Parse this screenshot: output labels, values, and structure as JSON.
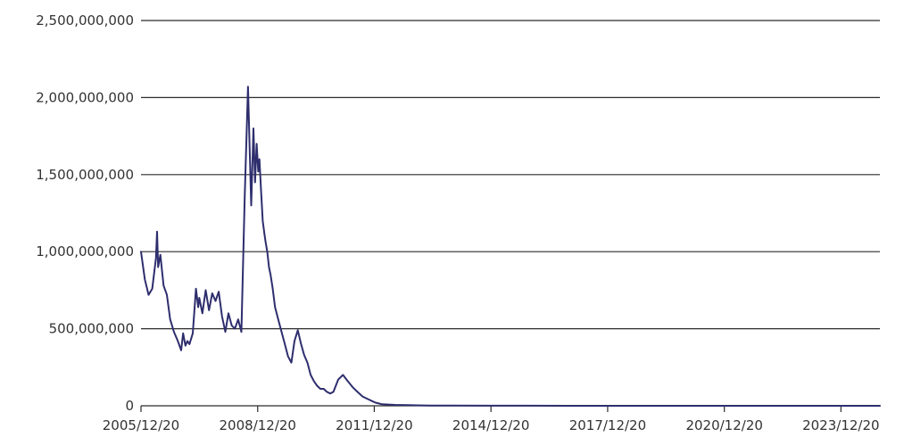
{
  "chart_data": {
    "type": "line",
    "title": "",
    "xlabel": "",
    "ylabel": "",
    "ylim": [
      0,
      2500000000
    ],
    "yticks": [
      0,
      500000000,
      1000000000,
      1500000000,
      2000000000,
      2500000000
    ],
    "ytick_labels": [
      "0",
      "500,000,000",
      "1,000,000,000",
      "1,500,000,000",
      "2,000,000,000",
      "2,500,000,000"
    ],
    "xlim": [
      "2005-12-20",
      "2024-12-20"
    ],
    "xticks": [
      "2005-12-20",
      "2008-12-20",
      "2011-12-20",
      "2014-12-20",
      "2017-12-20",
      "2020-12-20",
      "2023-12-20"
    ],
    "xtick_labels": [
      "2005/12/20",
      "2008/12/20",
      "2011/12/20",
      "2014/12/20",
      "2017/12/20",
      "2020/12/20",
      "2023/12/20"
    ],
    "grid": "horizontal",
    "line_color": "#2e2e6e",
    "series": [
      {
        "x": [
          "2005-12-20",
          "2006-01-25",
          "2006-03-01",
          "2006-04-05",
          "2006-05-10",
          "2006-05-20",
          "2006-05-30",
          "2006-06-20",
          "2006-07-20",
          "2006-08-20",
          "2006-09-20",
          "2006-10-25",
          "2006-12-01",
          "2007-01-01",
          "2007-01-20",
          "2007-02-10",
          "2007-03-01",
          "2007-03-20",
          "2007-04-20",
          "2007-05-20",
          "2007-06-10",
          "2007-06-20",
          "2007-07-20",
          "2007-08-20",
          "2007-09-20",
          "2007-10-20",
          "2007-11-20",
          "2007-12-20",
          "2008-01-20",
          "2008-02-20",
          "2008-03-20",
          "2008-04-20",
          "2008-05-20",
          "2008-06-20",
          "2008-07-20",
          "2008-08-20",
          "2008-09-20",
          "2008-10-20",
          "2008-11-10",
          "2008-11-25",
          "2008-12-10",
          "2008-12-25",
          "2009-01-05",
          "2009-01-20",
          "2009-02-05",
          "2009-02-20",
          "2009-03-05",
          "2009-03-20",
          "2009-04-05",
          "2009-04-20",
          "2009-05-10",
          "2009-06-01",
          "2009-07-01",
          "2009-08-01",
          "2009-09-01",
          "2009-10-01",
          "2009-11-01",
          "2009-12-01",
          "2010-01-01",
          "2010-02-01",
          "2010-03-01",
          "2010-04-01",
          "2010-05-01",
          "2010-06-01",
          "2010-07-01",
          "2010-08-01",
          "2010-09-01",
          "2010-10-01",
          "2010-11-01",
          "2010-12-01",
          "2011-01-15",
          "2011-03-01",
          "2011-04-15",
          "2011-06-01",
          "2011-07-15",
          "2011-09-01",
          "2011-10-01",
          "2011-11-01",
          "2011-12-01",
          "2012-01-01",
          "2012-02-01",
          "2012-03-01",
          "2012-05-01",
          "2012-07-01",
          "2012-09-01",
          "2012-11-01",
          "2013-02-01",
          "2013-06-01",
          "2013-12-01",
          "2014-12-20",
          "2016-01-01",
          "2017-12-20",
          "2019-01-01",
          "2020-12-20",
          "2023-12-20",
          "2024-12-20"
        ],
        "y": [
          1000000000,
          820000000,
          720000000,
          760000000,
          960000000,
          1130000000,
          900000000,
          980000000,
          780000000,
          720000000,
          560000000,
          480000000,
          420000000,
          360000000,
          470000000,
          390000000,
          420000000,
          400000000,
          470000000,
          760000000,
          640000000,
          700000000,
          600000000,
          750000000,
          620000000,
          730000000,
          680000000,
          740000000,
          580000000,
          480000000,
          600000000,
          520000000,
          500000000,
          560000000,
          480000000,
          1350000000,
          2070000000,
          1300000000,
          1800000000,
          1450000000,
          1700000000,
          1520000000,
          1600000000,
          1400000000,
          1200000000,
          1120000000,
          1060000000,
          1000000000,
          900000000,
          850000000,
          760000000,
          640000000,
          560000000,
          480000000,
          400000000,
          320000000,
          280000000,
          420000000,
          490000000,
          400000000,
          330000000,
          280000000,
          200000000,
          160000000,
          130000000,
          110000000,
          110000000,
          90000000,
          80000000,
          90000000,
          170000000,
          200000000,
          160000000,
          120000000,
          90000000,
          60000000,
          50000000,
          40000000,
          30000000,
          20000000,
          15000000,
          10000000,
          8000000,
          6000000,
          5000000,
          4000000,
          3000000,
          2000000,
          1000000,
          500000,
          300000,
          200000,
          100000,
          50000,
          20000,
          10000
        ]
      }
    ]
  }
}
